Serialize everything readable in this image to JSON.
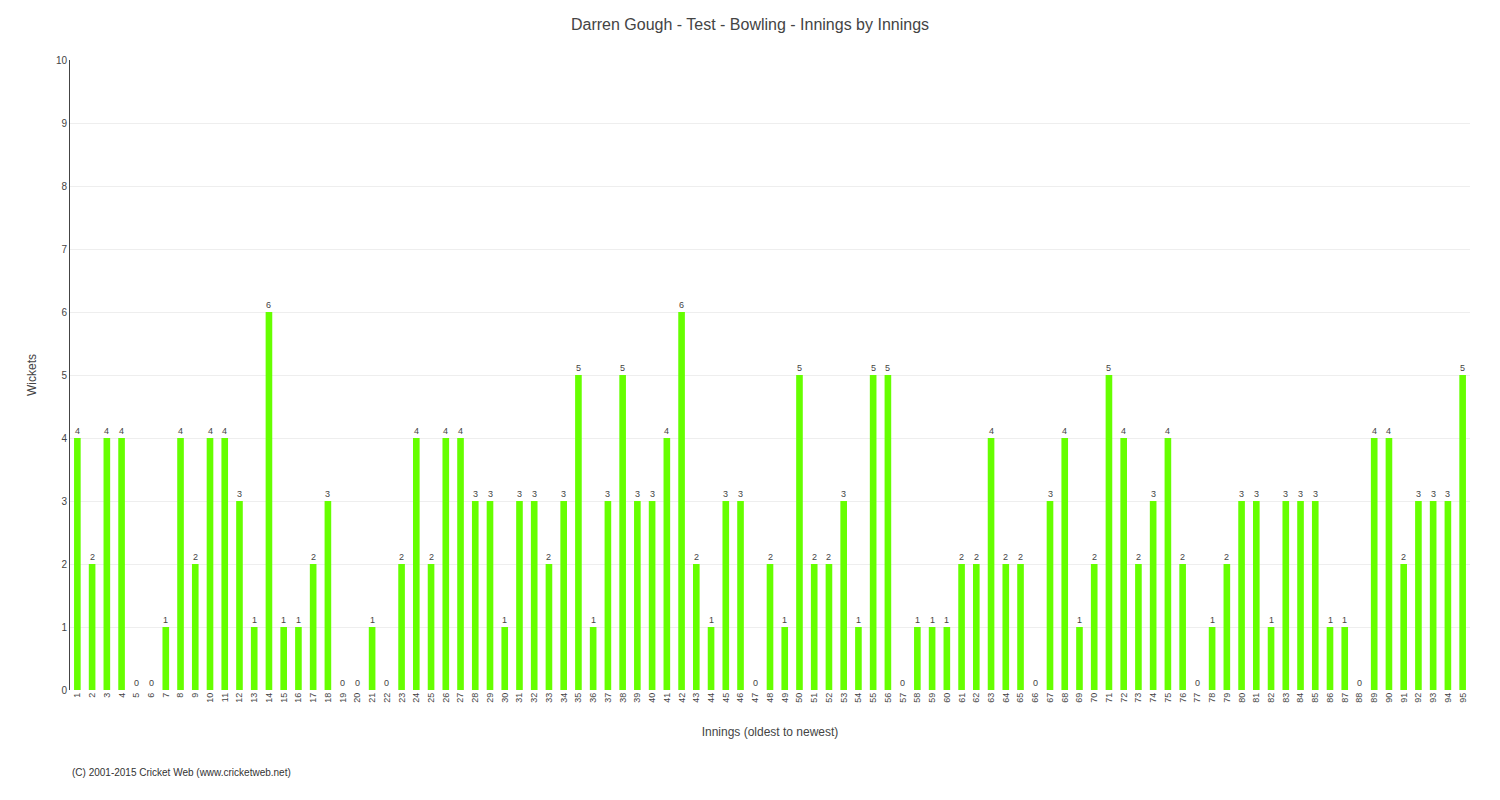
{
  "chart_data": {
    "type": "bar",
    "title": "Darren Gough - Test - Bowling - Innings by Innings",
    "xlabel": "Innings (oldest to newest)",
    "ylabel": "Wickets",
    "categories": [
      "1",
      "2",
      "3",
      "4",
      "5",
      "6",
      "7",
      "8",
      "9",
      "10",
      "11",
      "12",
      "13",
      "14",
      "15",
      "16",
      "17",
      "18",
      "19",
      "20",
      "21",
      "22",
      "23",
      "24",
      "25",
      "26",
      "27",
      "28",
      "29",
      "30",
      "31",
      "32",
      "33",
      "34",
      "35",
      "36",
      "37",
      "38",
      "39",
      "40",
      "41",
      "42",
      "43",
      "44",
      "45",
      "46",
      "47",
      "48",
      "49",
      "50",
      "51",
      "52",
      "53",
      "54",
      "55",
      "56",
      "57",
      "58",
      "59",
      "60",
      "61",
      "62",
      "63",
      "64",
      "65",
      "66",
      "67",
      "68",
      "69",
      "70",
      "71",
      "72",
      "73",
      "74",
      "75",
      "76",
      "77",
      "78",
      "79",
      "80",
      "81",
      "82",
      "83",
      "84",
      "85",
      "86",
      "87",
      "88",
      "89",
      "90",
      "91",
      "92",
      "93",
      "94",
      "95"
    ],
    "values": [
      4,
      2,
      4,
      4,
      0,
      0,
      1,
      4,
      2,
      4,
      4,
      3,
      1,
      6,
      1,
      1,
      2,
      3,
      0,
      0,
      1,
      0,
      2,
      4,
      2,
      4,
      4,
      3,
      3,
      1,
      3,
      3,
      2,
      3,
      5,
      1,
      3,
      5,
      3,
      3,
      4,
      6,
      2,
      1,
      3,
      3,
      0,
      2,
      1,
      5,
      2,
      2,
      3,
      1,
      5,
      5,
      0,
      1,
      1,
      1,
      2,
      2,
      4,
      2,
      2,
      0,
      3,
      4,
      1,
      2,
      5,
      4,
      2,
      3,
      4,
      2,
      0,
      1,
      2,
      3,
      3,
      1,
      3,
      3,
      3,
      1,
      1,
      0,
      4,
      4,
      2,
      3,
      3,
      3,
      5
    ],
    "color": "#66ff00",
    "ylim": [
      0,
      10
    ],
    "yticks": [
      0,
      1,
      2,
      3,
      4,
      5,
      6,
      7,
      8,
      9,
      10
    ],
    "grid": true,
    "data_labels": true,
    "annotations": [
      "(C) 2001-2015 Cricket Web (www.cricketweb.net)"
    ]
  }
}
